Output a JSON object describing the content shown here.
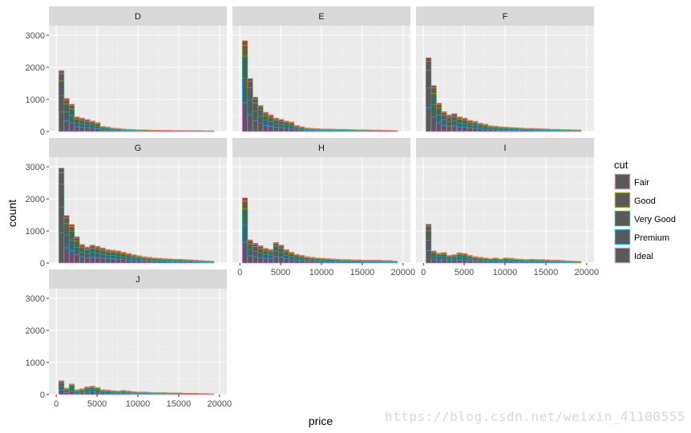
{
  "chart_data": {
    "type": "bar",
    "subtype": "stacked-histogram-facets",
    "xlabel": "price",
    "ylabel": "count",
    "xlim": [
      0,
      20000
    ],
    "ylim": [
      0,
      3300
    ],
    "x_ticks": [
      "0",
      "5000",
      "10000",
      "15000",
      "20000"
    ],
    "y_ticks": [
      "0",
      "1000",
      "2000",
      "3000"
    ],
    "grid": true,
    "legend_position": "right",
    "legend_title": "cut",
    "series": [
      {
        "name": "Fair",
        "color": "#F8766D"
      },
      {
        "name": "Good",
        "color": "#A3A500"
      },
      {
        "name": "Very Good",
        "color": "#00BF7D"
      },
      {
        "name": "Premium",
        "color": "#00B0F6"
      },
      {
        "name": "Ideal",
        "color": "#E76BF3"
      }
    ],
    "bin_width": 633,
    "bin_centers": [
      633,
      1266,
      1899,
      2532,
      3165,
      3798,
      4431,
      5064,
      5697,
      6330,
      6963,
      7596,
      8229,
      8862,
      9495,
      10128,
      10761,
      11394,
      12027,
      12660,
      13293,
      13926,
      14559,
      15192,
      15825,
      16458,
      17091,
      17724,
      18357,
      18990
    ],
    "facets": [
      {
        "label": "D",
        "totals": [
          1900,
          1030,
          850,
          460,
          420,
          380,
          330,
          280,
          160,
          140,
          110,
          100,
          80,
          70,
          60,
          55,
          50,
          45,
          40,
          40,
          35,
          35,
          30,
          30,
          30,
          25,
          25,
          25,
          20,
          20
        ]
      },
      {
        "label": "E",
        "totals": [
          2830,
          1650,
          1070,
          810,
          600,
          520,
          420,
          380,
          330,
          300,
          190,
          150,
          110,
          100,
          90,
          80,
          80,
          75,
          70,
          70,
          65,
          60,
          55,
          55,
          50,
          45,
          45,
          40,
          35,
          30
        ]
      },
      {
        "label": "F",
        "totals": [
          2300,
          1430,
          880,
          620,
          520,
          560,
          460,
          420,
          350,
          320,
          260,
          230,
          180,
          170,
          150,
          140,
          130,
          120,
          110,
          100,
          100,
          90,
          85,
          80,
          70,
          70,
          60,
          60,
          55,
          50
        ]
      },
      {
        "label": "G",
        "totals": [
          2960,
          1480,
          1200,
          820,
          580,
          500,
          560,
          520,
          470,
          420,
          400,
          380,
          340,
          300,
          260,
          230,
          200,
          180,
          160,
          150,
          140,
          130,
          120,
          120,
          110,
          100,
          90,
          80,
          70,
          60
        ]
      },
      {
        "label": "H",
        "totals": [
          2030,
          720,
          620,
          540,
          460,
          420,
          640,
          560,
          420,
          340,
          270,
          240,
          200,
          180,
          160,
          150,
          140,
          130,
          120,
          110,
          110,
          100,
          100,
          90,
          90,
          90,
          90,
          80,
          80,
          60
        ]
      },
      {
        "label": "I",
        "totals": [
          1210,
          380,
          310,
          330,
          240,
          260,
          320,
          300,
          240,
          200,
          180,
          160,
          140,
          160,
          130,
          160,
          150,
          130,
          120,
          110,
          120,
          110,
          110,
          100,
          90,
          90,
          80,
          70,
          60,
          50
        ]
      },
      {
        "label": "J",
        "totals": [
          430,
          200,
          330,
          150,
          180,
          240,
          260,
          220,
          150,
          140,
          120,
          110,
          130,
          110,
          90,
          80,
          80,
          70,
          60,
          60,
          60,
          50,
          50,
          50,
          40,
          40,
          40,
          30,
          30,
          20
        ]
      }
    ],
    "composition": [
      0.05,
      0.12,
      0.24,
      0.27,
      0.32
    ]
  },
  "watermark": "https://blog.csdn.net/weixin_41100555"
}
